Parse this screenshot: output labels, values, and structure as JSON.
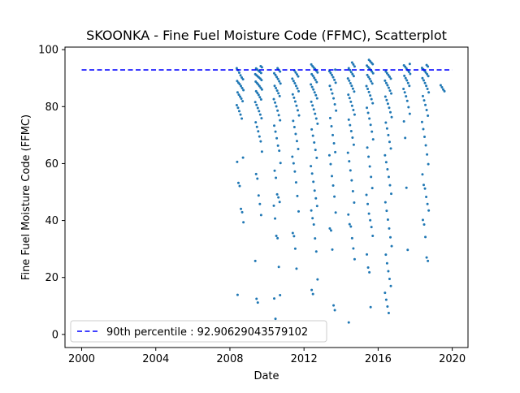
{
  "chart_data": {
    "type": "scatter",
    "title": "SKOONKA - Fine Fuel Moisture Code (FFMC), Scatterplot",
    "xlabel": "Date",
    "ylabel": "Fine Fuel Moisture Code (FFMC)",
    "xlim": [
      1999.1,
      2020.85
    ],
    "ylim": [
      -4.6,
      100.9
    ],
    "x_ticks": [
      {
        "value": 2000,
        "label": "2000"
      },
      {
        "value": 2004,
        "label": "2004"
      },
      {
        "value": 2008,
        "label": "2008"
      },
      {
        "value": 2012,
        "label": "2012"
      },
      {
        "value": 2016,
        "label": "2016"
      },
      {
        "value": 2020,
        "label": "2020"
      }
    ],
    "y_ticks": [
      {
        "value": 0,
        "label": "0"
      },
      {
        "value": 20,
        "label": "20"
      },
      {
        "value": 40,
        "label": "40"
      },
      {
        "value": 60,
        "label": "60"
      },
      {
        "value": 80,
        "label": "80"
      },
      {
        "value": 100,
        "label": "100"
      }
    ],
    "grid": false,
    "legend": {
      "position": "lower-left",
      "entries": [
        "90th percentile : 92.90629043579102"
      ]
    },
    "reference_line": {
      "label": "90th percentile : 92.90629043579102",
      "y": 92.90629043579102,
      "x_range": [
        2000,
        2020
      ],
      "style": "dashed",
      "color": "#0000ff"
    },
    "point_color": "#1f77b4",
    "series": [
      {
        "season_points": [
          {
            "x": 2008.55,
            "values": [
              93.5,
              92.8,
              91.9,
              91.0,
              90.2,
              89.6,
              89.0,
              88.4,
              87.9,
              87.2,
              86.5,
              85.8,
              85.0,
              84.2,
              83.5,
              82.8,
              81.9,
              80.5,
              79.6,
              78.4,
              77.2,
              75.8,
              62.1,
              60.6,
              53.2,
              52.1,
              44.1,
              42.9,
              39.4,
              13.9
            ]
          },
          {
            "x": 2009.55,
            "values": [
              94.2,
              93.8,
              93.4,
              93.0,
              92.6,
              92.2,
              91.8,
              91.4,
              91.0,
              90.6,
              90.2,
              89.8,
              89.3,
              88.8,
              88.3,
              87.8,
              87.2,
              86.6,
              86.0,
              85.4,
              84.8,
              84.1,
              83.3,
              82.5,
              81.6,
              80.6,
              79.5,
              78.4,
              77.2,
              75.9,
              74.5,
              72.9,
              71.3,
              69.5,
              67.8,
              64.2,
              56.3,
              54.7,
              48.8,
              45.8,
              41.9,
              25.8,
              12.5,
              11.2
            ]
          },
          {
            "x": 2010.55,
            "values": [
              93.5,
              92.9,
              92.3,
              91.7,
              91.1,
              90.4,
              89.7,
              88.9,
              88.1,
              87.3,
              86.5,
              85.6,
              84.7,
              83.7,
              82.6,
              81.4,
              80.1,
              78.6,
              77.0,
              75.2,
              73.3,
              71.2,
              68.9,
              66.3,
              64.5,
              60.2,
              57.5,
              55.0,
              49.2,
              48.1,
              46.5,
              45.2,
              40.7,
              34.6,
              33.8,
              23.7,
              13.8,
              12.6,
              5.5
            ]
          },
          {
            "x": 2011.55,
            "values": [
              92.7,
              92.0,
              91.3,
              90.6,
              89.8,
              89.0,
              88.2,
              87.3,
              86.4,
              85.4,
              84.3,
              83.1,
              81.8,
              80.3,
              78.7,
              76.9,
              75.0,
              72.8,
              70.4,
              67.9,
              65.1,
              62.4,
              60.1,
              57.2,
              53.4,
              48.6,
              43.2,
              35.6,
              34.5,
              30.1,
              23.1
            ]
          },
          {
            "x": 2012.55,
            "values": [
              94.8,
              94.2,
              93.7,
              93.2,
              92.6,
              92.0,
              91.4,
              90.8,
              90.1,
              89.4,
              88.6,
              87.8,
              86.9,
              86.0,
              85.0,
              84.0,
              82.9,
              81.7,
              80.4,
              79.0,
              77.5,
              75.8,
              74.0,
              72.0,
              69.8,
              67.4,
              64.8,
              62.0,
              59.1,
              56.5,
              53.6,
              50.5,
              47.8,
              45.1,
              43.5,
              40.8,
              38.6,
              33.7,
              29.1,
              19.3,
              15.6,
              14.2
            ]
          },
          {
            "x": 2013.55,
            "values": [
              93.0,
              92.4,
              91.8,
              91.1,
              90.3,
              89.4,
              88.4,
              87.3,
              86.0,
              84.6,
              82.9,
              80.8,
              78.6,
              76.0,
              73.1,
              70.0,
              67.1,
              64.0,
              62.9,
              59.8,
              55.6,
              52.3,
              48.4,
              42.8,
              37.2,
              36.5,
              29.8,
              10.2,
              8.5
            ]
          },
          {
            "x": 2014.55,
            "values": [
              95.5,
              94.8,
              94.1,
              93.5,
              92.8,
              92.1,
              91.4,
              90.7,
              89.9,
              89.1,
              88.2,
              87.3,
              86.3,
              85.3,
              84.2,
              83.0,
              81.7,
              80.3,
              78.8,
              77.2,
              75.4,
              73.5,
              71.4,
              69.1,
              66.6,
              63.8,
              60.8,
              57.6,
              54.1,
              50.3,
              46.3,
              42.1,
              38.7,
              37.9,
              33.8,
              30.2,
              26.4,
              4.2
            ]
          },
          {
            "x": 2015.55,
            "values": [
              96.4,
              95.9,
              95.4,
              94.9,
              94.4,
              93.9,
              93.4,
              92.9,
              92.3,
              91.7,
              91.1,
              90.4,
              89.7,
              88.9,
              88.1,
              87.2,
              86.2,
              85.1,
              83.9,
              82.6,
              81.2,
              79.6,
              77.8,
              75.8,
              73.6,
              71.2,
              68.5,
              65.6,
              62.4,
              59.0,
              55.3,
              51.4,
              49.0,
              45.8,
              42.4,
              40.1,
              37.7,
              34.6,
              28.1,
              23.5,
              21.8,
              9.6
            ]
          },
          {
            "x": 2016.55,
            "values": [
              92.3,
              91.7,
              91.1,
              90.5,
              89.8,
              89.1,
              88.3,
              87.5,
              86.6,
              85.6,
              84.6,
              83.5,
              82.3,
              81.0,
              79.6,
              78.0,
              76.3,
              74.4,
              72.3,
              70.0,
              67.6,
              65.3,
              62.9,
              60.5,
              58.0,
              55.3,
              52.4,
              49.4,
              46.4,
              43.4,
              40.3,
              37.2,
              34.1,
              31.0,
              28.0,
              25.0,
              22.2,
              19.5,
              17.0,
              14.6,
              12.2,
              9.8,
              7.5
            ]
          },
          {
            "x": 2017.55,
            "values": [
              95.0,
              94.5,
              94.0,
              93.4,
              92.8,
              92.2,
              91.5,
              90.8,
              90.0,
              89.2,
              88.3,
              87.3,
              86.2,
              85.0,
              83.6,
              82.0,
              79.8,
              77.5,
              74.8,
              69.0,
              51.5,
              29.7
            ]
          },
          {
            "x": 2018.55,
            "values": [
              94.6,
              94.1,
              93.6,
              93.1,
              92.6,
              92.0,
              91.4,
              90.7,
              90.0,
              89.2,
              88.3,
              87.3,
              86.2,
              85.0,
              83.7,
              82.2,
              80.6,
              78.8,
              76.8,
              74.6,
              72.1,
              69.4,
              66.4,
              63.2,
              59.8,
              56.2,
              52.5,
              51.2,
              48.3,
              45.8,
              43.5,
              40.2,
              38.6,
              34.2,
              27.0,
              25.8
            ]
          },
          {
            "x": 2019.4,
            "values": [
              87.5,
              86.8,
              86.0,
              85.4
            ]
          }
        ]
      }
    ]
  }
}
